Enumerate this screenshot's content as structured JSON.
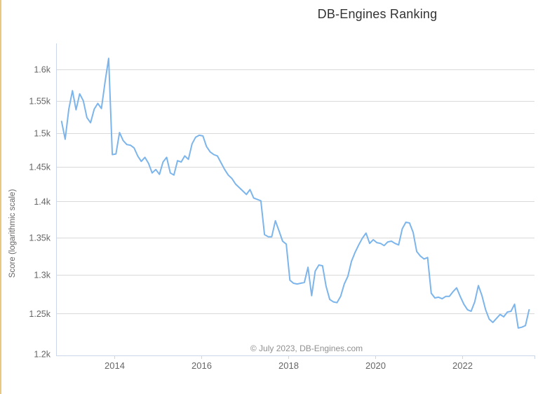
{
  "page": {
    "title": "DB-Engines Ranking"
  },
  "chart_data": {
    "type": "line",
    "title": "DB-Engines Ranking",
    "xlabel": "",
    "ylabel": "Score (logarithmic scale)",
    "credit": "© July 2023, DB-Engines.com",
    "y_scale": "logarithmic",
    "ylim": [
      1200,
      1650
    ],
    "grid": true,
    "legend": "none",
    "x_range": {
      "start": "2012-10",
      "end": "2023-07"
    },
    "x_ticks": [
      {
        "year": 2014,
        "label": "2014"
      },
      {
        "year": 2016,
        "label": "2016"
      },
      {
        "year": 2018,
        "label": "2018"
      },
      {
        "year": 2020,
        "label": "2020"
      },
      {
        "year": 2022,
        "label": "2022"
      }
    ],
    "y_ticks": [
      {
        "value": 1600,
        "label": "1.6k"
      },
      {
        "value": 1550,
        "label": "1.55k"
      },
      {
        "value": 1500,
        "label": "1.5k"
      },
      {
        "value": 1450,
        "label": "1.45k"
      },
      {
        "value": 1400,
        "label": "1.4k"
      },
      {
        "value": 1350,
        "label": "1.35k"
      },
      {
        "value": 1300,
        "label": "1.3k"
      },
      {
        "value": 1250,
        "label": "1.25k"
      },
      {
        "value": 1200,
        "label": "1.2k"
      }
    ],
    "colors": {
      "line": "#7cb5ec",
      "grid": "#d9d9d9",
      "axis": "#ccd6eb",
      "tick_label": "#666666",
      "title": "#333333",
      "credit": "#8f8f8f",
      "edge_strip": "#e9c87f"
    },
    "series": [
      {
        "name": "Score",
        "start": "2012-10",
        "interval": "monthly",
        "values": [
          1518,
          1491,
          1537,
          1566,
          1536,
          1561,
          1550,
          1524,
          1516,
          1537,
          1546,
          1538,
          1580,
          1618,
          1468,
          1469,
          1501,
          1489,
          1483,
          1482,
          1478,
          1466,
          1458,
          1464,
          1455,
          1441,
          1446,
          1439,
          1457,
          1464,
          1441,
          1438,
          1459,
          1457,
          1466,
          1461,
          1484,
          1494,
          1497,
          1496,
          1480,
          1472,
          1468,
          1466,
          1456,
          1446,
          1438,
          1433,
          1425,
          1420,
          1415,
          1410,
          1417,
          1405,
          1403,
          1401,
          1354,
          1351,
          1351,
          1373,
          1359,
          1345,
          1341,
          1293,
          1289,
          1288,
          1289,
          1290,
          1310,
          1273,
          1305,
          1313,
          1312,
          1285,
          1268,
          1265,
          1264,
          1272,
          1288,
          1298,
          1318,
          1330,
          1340,
          1349,
          1356,
          1342,
          1347,
          1343,
          1342,
          1339,
          1344,
          1345,
          1342,
          1340,
          1362,
          1371,
          1370,
          1357,
          1331,
          1325,
          1321,
          1323,
          1276,
          1270,
          1271,
          1269,
          1272,
          1272,
          1278,
          1283,
          1272,
          1262,
          1255,
          1253,
          1265,
          1286,
          1273,
          1255,
          1243,
          1239,
          1244,
          1249,
          1246,
          1252,
          1253,
          1262,
          1232,
          1233,
          1235,
          1255
        ]
      }
    ]
  }
}
